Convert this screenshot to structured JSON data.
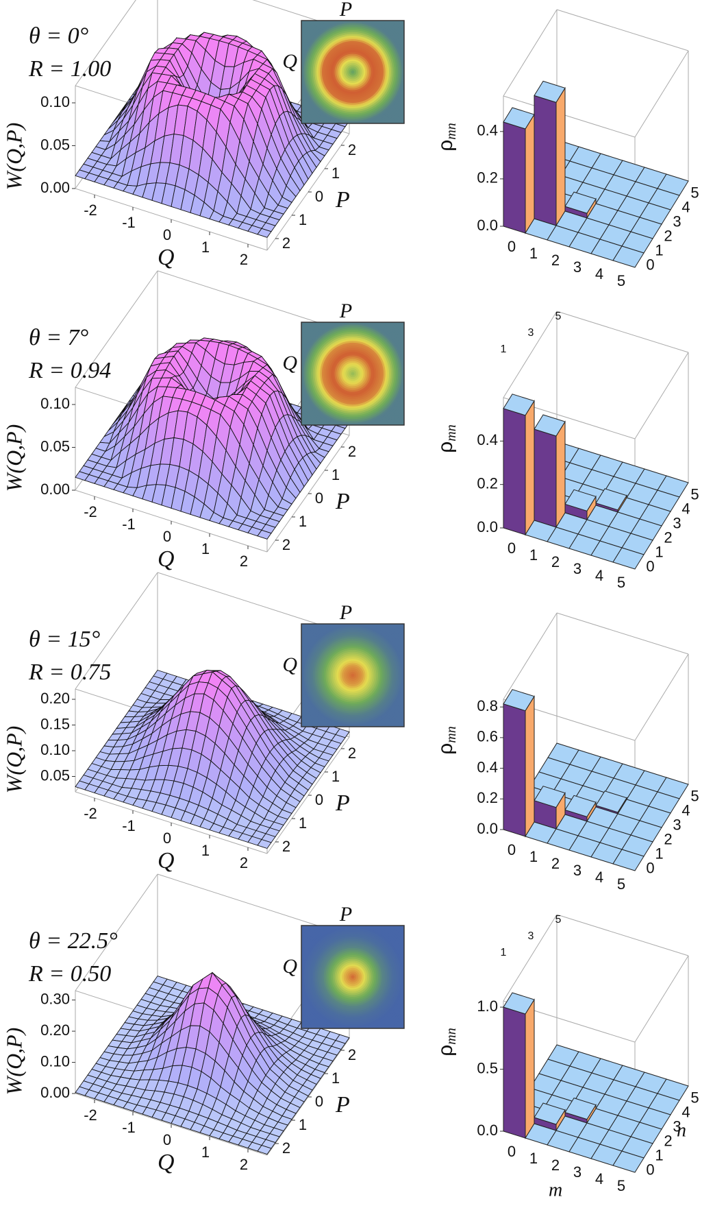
{
  "chart_data": [
    {
      "type": "surface",
      "annotations": [
        "θ = 0°",
        "R = 1.00"
      ],
      "x_label": "Q",
      "y_label": "P",
      "z_label": "W(Q,P)",
      "inset_top_label": "P",
      "inset_left_label": "Q",
      "xlim": [
        -2.5,
        2.5
      ],
      "ylim": [
        -2.5,
        2.5
      ],
      "xticks": [
        -2,
        -1,
        0,
        1,
        2
      ],
      "yticks": [
        2,
        1,
        0,
        {
          "value": -1,
          "label": "1"
        },
        {
          "value": -2,
          "label": "2"
        }
      ],
      "zlim": [
        0,
        0.12
      ],
      "zticks": [
        {
          "value": 0,
          "label": "0.00"
        },
        {
          "value": 0.05,
          "label": "0.05"
        },
        {
          "value": 0.1,
          "label": "0.10"
        }
      ],
      "r": [
        0,
        0.5,
        1,
        1.5,
        2,
        2.5
      ],
      "values": [
        0.03,
        0.07,
        0.11,
        0.105,
        0.05,
        0.015
      ]
    },
    {
      "type": "bar3d",
      "z_label": "ρ",
      "z_label_sub": "mn",
      "categories": [
        "0",
        "1",
        "2",
        "3",
        "4",
        "5"
      ],
      "n_categories": [
        "0",
        "1",
        "2",
        "3",
        "4",
        "5"
      ],
      "values": [
        0.44,
        0.52,
        0.02,
        0,
        0,
        0
      ],
      "zlim": [
        0,
        0.55
      ],
      "zticks": [
        {
          "value": 0,
          "label": "0.0"
        },
        {
          "value": 0.2,
          "label": "0.2"
        },
        {
          "value": 0.4,
          "label": "0.4"
        }
      ],
      "colors": {
        "top": "#a9d3f7",
        "front": "#6b3a8e",
        "side": "#f8a96b"
      }
    },
    {
      "type": "surface",
      "annotations": [
        "θ = 7°",
        "R = 0.94"
      ],
      "x_label": "Q",
      "y_label": "P",
      "z_label": "W(Q,P)",
      "inset_top_label": "P",
      "inset_left_label": "Q",
      "xlim": [
        -2.5,
        2.5
      ],
      "ylim": [
        -2.5,
        2.5
      ],
      "xticks": [
        -2,
        -1,
        0,
        1,
        2
      ],
      "yticks": [
        2,
        1,
        0,
        {
          "value": -1,
          "label": "1"
        },
        {
          "value": -2,
          "label": "2"
        }
      ],
      "zlim": [
        0,
        0.12
      ],
      "zticks": [
        {
          "value": 0,
          "label": "0.00"
        },
        {
          "value": 0.05,
          "label": "0.05"
        },
        {
          "value": 0.1,
          "label": "0.10"
        }
      ],
      "r": [
        0,
        0.5,
        1,
        1.5,
        2,
        2.5
      ],
      "values": [
        0.05,
        0.08,
        0.11,
        0.1,
        0.05,
        0.015
      ]
    },
    {
      "type": "bar3d",
      "z_label": "ρ",
      "z_label_sub": "mn",
      "categories": [
        "0",
        "1",
        "2",
        "3",
        "4",
        "5"
      ],
      "n_categories": [
        "0",
        "1",
        "2",
        "3",
        "4",
        "5"
      ],
      "values": [
        0.55,
        0.42,
        0.04,
        0.01,
        0,
        0
      ],
      "zlim": [
        0,
        0.6
      ],
      "zticks": [
        {
          "value": 0,
          "label": "0.0"
        },
        {
          "value": 0.2,
          "label": "0.2"
        },
        {
          "value": 0.4,
          "label": "0.4"
        }
      ],
      "back_labels": [
        "1",
        "3",
        "5"
      ],
      "colors": {
        "top": "#a9d3f7",
        "front": "#6b3a8e",
        "side": "#f8a96b"
      }
    },
    {
      "type": "surface",
      "annotations": [
        "θ = 15°",
        "R = 0.75"
      ],
      "x_label": "Q",
      "y_label": "P",
      "z_label": "W(Q,P)",
      "inset_top_label": "P",
      "inset_left_label": "Q",
      "xlim": [
        -2.5,
        2.5
      ],
      "ylim": [
        -2.5,
        2.5
      ],
      "xticks": [
        -2,
        -1,
        0,
        1,
        2
      ],
      "yticks": [
        2,
        1,
        0,
        {
          "value": -1,
          "label": "1"
        },
        {
          "value": -2,
          "label": "2"
        }
      ],
      "zlim": [
        0.02,
        0.22
      ],
      "zticks": [
        {
          "value": 0.05,
          "label": "0.05"
        },
        {
          "value": 0.1,
          "label": "0.10"
        },
        {
          "value": 0.15,
          "label": "0.15"
        },
        {
          "value": 0.2,
          "label": "0.20"
        }
      ],
      "r": [
        0,
        0.5,
        1,
        1.5,
        2,
        2.5
      ],
      "values": [
        0.2,
        0.18,
        0.13,
        0.08,
        0.045,
        0.03
      ]
    },
    {
      "type": "bar3d",
      "z_label": "ρ",
      "z_label_sub": "mn",
      "categories": [
        "0",
        "1",
        "2",
        "3",
        "4",
        "5"
      ],
      "n_categories": [
        "0",
        "1",
        "2",
        "3",
        "4",
        "5"
      ],
      "values": [
        0.82,
        0.14,
        0.03,
        0.01,
        0,
        0
      ],
      "zlim": [
        0,
        0.85
      ],
      "zticks": [
        {
          "value": 0,
          "label": "0.0"
        },
        {
          "value": 0.2,
          "label": "0.2"
        },
        {
          "value": 0.4,
          "label": "0.4"
        },
        {
          "value": 0.6,
          "label": "0.6"
        },
        {
          "value": 0.8,
          "label": "0.8"
        }
      ],
      "colors": {
        "top": "#a9d3f7",
        "front": "#6b3a8e",
        "side": "#f8a96b"
      }
    },
    {
      "type": "surface",
      "annotations": [
        "θ = 22.5°",
        "R = 0.50"
      ],
      "x_label": "Q",
      "y_label": "P",
      "z_label": "W(Q,P)",
      "inset_top_label": "P",
      "inset_left_label": "Q",
      "xlim": [
        -2.5,
        2.5
      ],
      "ylim": [
        -2.5,
        2.5
      ],
      "xticks": [
        -2,
        -1,
        0,
        1,
        2
      ],
      "yticks": [
        2,
        1,
        0,
        {
          "value": -1,
          "label": "1"
        },
        {
          "value": -2,
          "label": "2"
        }
      ],
      "zlim": [
        0,
        0.33
      ],
      "zticks": [
        {
          "value": 0,
          "label": "0.00"
        },
        {
          "value": 0.1,
          "label": "0.10"
        },
        {
          "value": 0.2,
          "label": "0.20"
        },
        {
          "value": 0.3,
          "label": "0.30"
        }
      ],
      "r": [
        0,
        0.5,
        1,
        1.5,
        2,
        2.5
      ],
      "values": [
        0.3,
        0.24,
        0.13,
        0.05,
        0.015,
        0.003
      ]
    },
    {
      "type": "bar3d",
      "z_label": "ρ",
      "z_label_sub": "mn",
      "x_label": "m",
      "y_label": "n",
      "categories": [
        "0",
        "1",
        "2",
        "3",
        "4",
        "5"
      ],
      "n_categories": [
        "0",
        "1",
        "2",
        "3",
        "4",
        "5"
      ],
      "values": [
        1.0,
        0.05,
        0.03,
        0,
        0,
        0
      ],
      "zlim": [
        0,
        1.05
      ],
      "zticks": [
        {
          "value": 0,
          "label": "0.0"
        },
        {
          "value": 0.5,
          "label": "0.5"
        },
        {
          "value": 1,
          "label": "1.0"
        }
      ],
      "back_labels": [
        "1",
        "3",
        "5"
      ],
      "colors": {
        "top": "#a9d3f7",
        "front": "#6b3a8e",
        "side": "#f8a96b"
      }
    }
  ]
}
